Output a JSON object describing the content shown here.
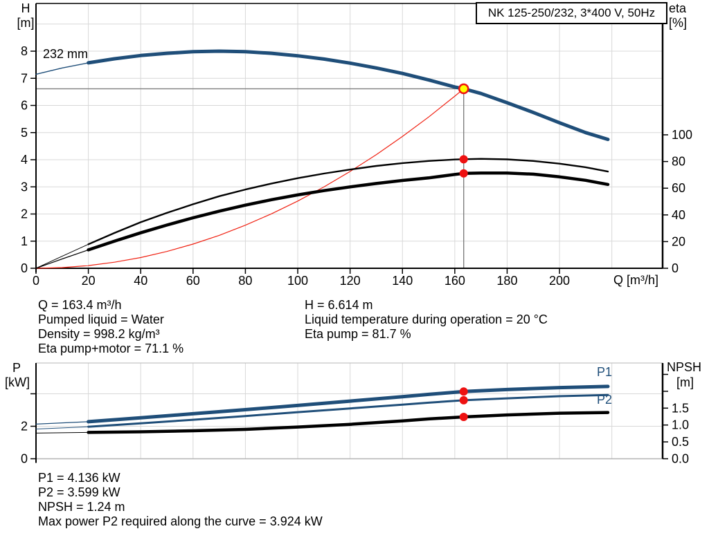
{
  "header": {
    "title": "NK 125-250/232, 3*400 V, 50Hz"
  },
  "axis_labels": {
    "h": "H",
    "h_unit": "[m]",
    "eta": "eta",
    "eta_unit": "[%]",
    "q": "Q [m³/h]",
    "p": "P",
    "p_unit": "[kW]",
    "npsh": "NPSH",
    "npsh_unit": "[m]"
  },
  "curve_labels": {
    "impeller": "232 mm",
    "p1": "P1",
    "p2": "P2"
  },
  "annotations": {
    "duty_left": [
      "Q = 163.4 m³/h",
      "Pumped liquid = Water",
      "Density = 998.2 kg/m³",
      "Eta pump+motor = 71.1 %"
    ],
    "duty_right": [
      "H = 6.614 m",
      "Liquid temperature during operation = 20 °C",
      "Eta pump = 81.7 %"
    ],
    "power": [
      "P1 = 4.136 kW",
      "P2 = 3.599 kW",
      "NPSH = 1.24 m",
      "Max power P2 required along the curve = 3.924 kW"
    ]
  },
  "colors": {
    "blue": "#1f4e79",
    "black": "#000000",
    "red": "#f02011",
    "marker": "#ee1111",
    "duty_fill": "#ffff00",
    "grid": "#d8d8d8",
    "crosshair": "#7f7f7f",
    "frame_gray": "#b5b5b5"
  },
  "chart_data": [
    {
      "type": "line",
      "title": "NK 125-250/232, 3*400 V, 50Hz",
      "xlabel": "Q [m³/h]",
      "ylabel_left": "H [m]",
      "ylabel_right": "eta [%]",
      "x_range": [
        0,
        239.4
      ],
      "left_axis": {
        "label": "H [m]",
        "range": [
          0,
          9.758
        ],
        "ticks": [
          {
            "v": 0,
            "label": "0"
          },
          {
            "v": 1,
            "label": "1"
          },
          {
            "v": 2,
            "label": "2"
          },
          {
            "v": 3,
            "label": "3"
          },
          {
            "v": 4,
            "label": "4"
          },
          {
            "v": 5,
            "label": "5"
          },
          {
            "v": 6,
            "label": "6"
          },
          {
            "v": 7,
            "label": "7"
          },
          {
            "v": 8,
            "label": "8"
          }
        ]
      },
      "right_axis": {
        "label": "eta [%]",
        "range": [
          0,
          198.45
        ],
        "ticks": [
          {
            "v": 0,
            "label": "0"
          },
          {
            "v": 20,
            "label": "20"
          },
          {
            "v": 40,
            "label": "40"
          },
          {
            "v": 60,
            "label": "60"
          },
          {
            "v": 80,
            "label": "80"
          },
          {
            "v": 100,
            "label": "100"
          }
        ]
      },
      "x_ticks": [
        {
          "v": 0,
          "label": "0"
        },
        {
          "v": 20,
          "label": "20"
        },
        {
          "v": 40,
          "label": "40"
        },
        {
          "v": 60,
          "label": "60"
        },
        {
          "v": 80,
          "label": "80"
        },
        {
          "v": 100,
          "label": "100"
        },
        {
          "v": 120,
          "label": "120"
        },
        {
          "v": 140,
          "label": "140"
        },
        {
          "v": 160,
          "label": "160"
        },
        {
          "v": 180,
          "label": "180"
        },
        {
          "v": 200,
          "label": "200"
        }
      ],
      "grid": {
        "x": [
          20,
          40,
          60,
          80,
          100,
          120,
          140,
          160,
          180,
          200,
          220
        ],
        "left": [
          1,
          2,
          3,
          4,
          5,
          6,
          7,
          8,
          9
        ]
      },
      "series": [
        {
          "name": "system-curve",
          "axis": "left",
          "color": "red",
          "width": 1.2,
          "points": [
            [
              0,
              0
            ],
            [
              10,
              0.025
            ],
            [
              20,
              0.099
            ],
            [
              30,
              0.223
            ],
            [
              40,
              0.396
            ],
            [
              50,
              0.62
            ],
            [
              60,
              0.892
            ],
            [
              70,
              1.214
            ],
            [
              80,
              1.586
            ],
            [
              90,
              2.007
            ],
            [
              100,
              2.477
            ],
            [
              110,
              2.997
            ],
            [
              120,
              3.567
            ],
            [
              130,
              4.186
            ],
            [
              140,
              4.855
            ],
            [
              150,
              5.573
            ],
            [
              160,
              6.341
            ],
            [
              163.4,
              6.614
            ]
          ]
        },
        {
          "name": "head-232mm",
          "axis": "left",
          "color": "blue",
          "width": 5,
          "thin_until": 20,
          "thin_width": 1.4,
          "points": [
            [
              0,
              7.15
            ],
            [
              10,
              7.38
            ],
            [
              20,
              7.57
            ],
            [
              30,
              7.72
            ],
            [
              40,
              7.84
            ],
            [
              50,
              7.92
            ],
            [
              60,
              7.98
            ],
            [
              70,
              8.0
            ],
            [
              80,
              7.98
            ],
            [
              90,
              7.92
            ],
            [
              100,
              7.83
            ],
            [
              110,
              7.71
            ],
            [
              120,
              7.56
            ],
            [
              130,
              7.38
            ],
            [
              140,
              7.18
            ],
            [
              150,
              6.94
            ],
            [
              160,
              6.68
            ],
            [
              163.4,
              6.614
            ],
            [
              170,
              6.44
            ],
            [
              180,
              6.1
            ],
            [
              190,
              5.74
            ],
            [
              200,
              5.36
            ],
            [
              210,
              5.0
            ],
            [
              218.5,
              4.75
            ]
          ]
        },
        {
          "name": "eta-pump",
          "axis": "right",
          "color": "black",
          "width": 2.4,
          "thin_until": 20,
          "thin_width": 1,
          "points": [
            [
              0,
              0
            ],
            [
              10,
              9
            ],
            [
              20,
              18
            ],
            [
              30,
              26.5
            ],
            [
              40,
              34.5
            ],
            [
              50,
              41.5
            ],
            [
              60,
              48
            ],
            [
              70,
              54
            ],
            [
              80,
              59
            ],
            [
              90,
              63.5
            ],
            [
              100,
              67.5
            ],
            [
              110,
              71
            ],
            [
              120,
              74
            ],
            [
              130,
              76.7
            ],
            [
              140,
              78.8
            ],
            [
              150,
              80.4
            ],
            [
              160,
              81.5
            ],
            [
              163.4,
              81.7
            ],
            [
              170,
              82
            ],
            [
              180,
              81.6
            ],
            [
              190,
              80.4
            ],
            [
              200,
              78.4
            ],
            [
              210,
              75.7
            ],
            [
              218.5,
              72.5
            ]
          ]
        },
        {
          "name": "eta-pump-motor",
          "axis": "right",
          "color": "black",
          "width": 4.5,
          "thin_until": 20,
          "thin_width": 1.2,
          "points": [
            [
              0,
              0
            ],
            [
              10,
              7
            ],
            [
              20,
              13.8
            ],
            [
              30,
              20.3
            ],
            [
              40,
              26.6
            ],
            [
              50,
              32.4
            ],
            [
              60,
              37.8
            ],
            [
              70,
              42.8
            ],
            [
              80,
              47.3
            ],
            [
              90,
              51.4
            ],
            [
              100,
              55
            ],
            [
              110,
              58.2
            ],
            [
              120,
              61
            ],
            [
              130,
              63.5
            ],
            [
              140,
              65.8
            ],
            [
              150,
              67.7
            ],
            [
              160,
              70.3
            ],
            [
              163.4,
              71.1
            ],
            [
              170,
              71.4
            ],
            [
              180,
              71.4
            ],
            [
              190,
              70.5
            ],
            [
              200,
              68.5
            ],
            [
              210,
              65.9
            ],
            [
              218.5,
              62.8
            ]
          ]
        }
      ],
      "duty_point": {
        "q": 163.4,
        "h": 6.614
      },
      "markers": [
        {
          "q": 163.4,
          "axis": "right",
          "v": 81.7
        },
        {
          "q": 163.4,
          "axis": "right",
          "v": 71.1
        }
      ]
    },
    {
      "type": "line",
      "title": "",
      "xlabel": "",
      "ylabel_left": "P [kW]",
      "ylabel_right": "NPSH [m]",
      "x_range": [
        0,
        239.4
      ],
      "left_axis": {
        "label": "P [kW]",
        "range": [
          0,
          5.894
        ],
        "ticks": [
          {
            "v": 0,
            "label": "0"
          },
          {
            "v": 2,
            "label": "2"
          },
          {
            "v": 4
          }
        ]
      },
      "right_axis": {
        "label": "NPSH [m]",
        "range": [
          0,
          2.838
        ],
        "ticks": [
          {
            "v": 0,
            "label": "0.0"
          },
          {
            "v": 0.5,
            "label": "0.5"
          },
          {
            "v": 1,
            "label": "1.0"
          },
          {
            "v": 1.5,
            "label": "1.5"
          },
          {
            "v": 2
          },
          {
            "v": 2.5
          }
        ]
      },
      "x_ticks": [],
      "grid": {
        "x": [
          20,
          40,
          60,
          80,
          100,
          120,
          140,
          160,
          180,
          200,
          220
        ],
        "left": [
          2,
          4
        ]
      },
      "series": [
        {
          "name": "npsh-curve",
          "axis": "right",
          "color": "black",
          "width": 4.5,
          "thin_until": 20,
          "thin_width": 1,
          "points": [
            [
              0,
              0.76
            ],
            [
              20,
              0.78
            ],
            [
              40,
              0.8
            ],
            [
              60,
              0.83
            ],
            [
              80,
              0.87
            ],
            [
              100,
              0.94
            ],
            [
              120,
              1.02
            ],
            [
              140,
              1.12
            ],
            [
              150,
              1.18
            ],
            [
              163.4,
              1.24
            ],
            [
              180,
              1.3
            ],
            [
              200,
              1.35
            ],
            [
              218.5,
              1.37
            ]
          ]
        },
        {
          "name": "p2-curve",
          "axis": "left",
          "color": "blue",
          "width": 3,
          "thin_until": 20,
          "thin_width": 1,
          "points": [
            [
              0,
              1.83
            ],
            [
              20,
              1.97
            ],
            [
              40,
              2.18
            ],
            [
              60,
              2.4
            ],
            [
              80,
              2.63
            ],
            [
              100,
              2.87
            ],
            [
              120,
              3.1
            ],
            [
              140,
              3.33
            ],
            [
              150,
              3.45
            ],
            [
              163.4,
              3.599
            ],
            [
              180,
              3.72
            ],
            [
              200,
              3.85
            ],
            [
              218.5,
              3.924
            ]
          ]
        },
        {
          "name": "p1-curve",
          "axis": "left",
          "color": "blue",
          "width": 5,
          "thin_until": 20,
          "thin_width": 1.2,
          "points": [
            [
              0,
              2.13
            ],
            [
              20,
              2.28
            ],
            [
              40,
              2.52
            ],
            [
              60,
              2.77
            ],
            [
              80,
              3.02
            ],
            [
              100,
              3.28
            ],
            [
              120,
              3.55
            ],
            [
              140,
              3.82
            ],
            [
              150,
              3.96
            ],
            [
              163.4,
              4.136
            ],
            [
              180,
              4.26
            ],
            [
              200,
              4.38
            ],
            [
              218.5,
              4.45
            ]
          ]
        }
      ],
      "markers": [
        {
          "q": 163.4,
          "axis": "left",
          "v": 4.136
        },
        {
          "q": 163.4,
          "axis": "left",
          "v": 3.599
        },
        {
          "q": 163.4,
          "axis": "right",
          "v": 1.24
        }
      ]
    }
  ]
}
